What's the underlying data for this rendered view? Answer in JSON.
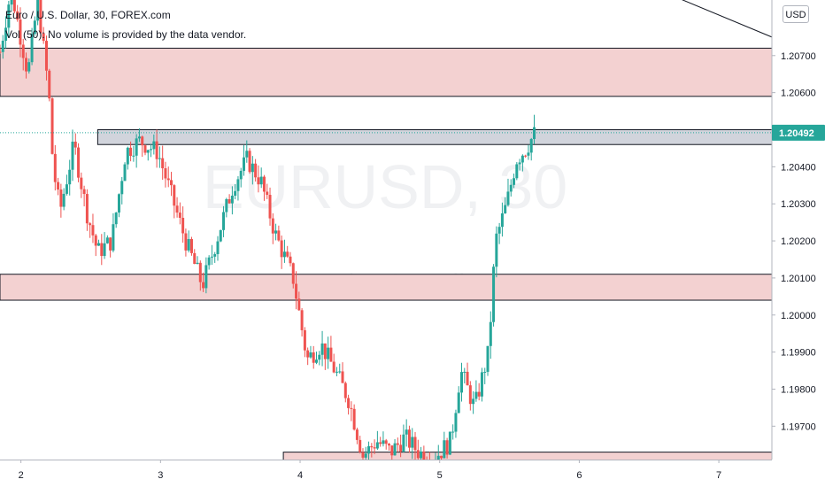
{
  "header": {
    "symbol_line": "Euro / U.S. Dollar, 30, FOREX.com",
    "volume_line": "Vol (50): No volume is provided by the data vendor."
  },
  "currency_button": "USD",
  "watermark": {
    "symbol": "EURUSD, 30",
    "name": "Euro / U.S. Dollar"
  },
  "colors": {
    "up": "#26a69a",
    "down": "#ef5350",
    "zone_red": "#f3d1d1",
    "zone_gray": "#d1d4dc",
    "price_tag": "#26a69a"
  },
  "chart_data": {
    "type": "candlestick",
    "instrument": "EURUSD",
    "timeframe": "30",
    "x_ticks": [
      "2",
      "3",
      "4",
      "5",
      "6",
      "7"
    ],
    "y_ticks": [
      "1.19700",
      "1.19800",
      "1.19900",
      "1.20000",
      "1.20100",
      "1.20200",
      "1.20300",
      "1.20400",
      "1.20600",
      "1.20700"
    ],
    "ylim": [
      1.1961,
      1.2085
    ],
    "xlim": [
      1.85,
      7.38
    ],
    "last_price": "1.20492",
    "zones": [
      {
        "color": "red",
        "x_start": 1.85,
        "x_end": 7.38,
        "y_low": 1.2059,
        "y_high": 1.2072
      },
      {
        "color": "gray",
        "x_start": 2.55,
        "x_end": 7.38,
        "y_low": 1.2046,
        "y_high": 1.205
      },
      {
        "color": "red",
        "x_start": 1.85,
        "x_end": 7.38,
        "y_low": 1.2004,
        "y_high": 1.2011
      },
      {
        "color": "red",
        "x_start": 3.88,
        "x_end": 7.38,
        "y_low": 1.196,
        "y_high": 1.1963
      }
    ],
    "trendline": [
      {
        "x": 6.55,
        "y": 1.2088
      },
      {
        "x": 7.38,
        "y": 1.2075
      }
    ],
    "price_path": [
      {
        "x": 1.85,
        "y": 1.2071
      },
      {
        "x": 1.93,
        "y": 1.2088
      },
      {
        "x": 2.05,
        "y": 1.2065
      },
      {
        "x": 2.12,
        "y": 1.2085
      },
      {
        "x": 2.2,
        "y": 1.206
      },
      {
        "x": 2.23,
        "y": 1.204
      },
      {
        "x": 2.28,
        "y": 1.2028
      },
      {
        "x": 2.38,
        "y": 1.2046
      },
      {
        "x": 2.47,
        "y": 1.2028
      },
      {
        "x": 2.55,
        "y": 1.2017
      },
      {
        "x": 2.65,
        "y": 1.202
      },
      {
        "x": 2.75,
        "y": 1.2044
      },
      {
        "x": 2.85,
        "y": 1.2047
      },
      {
        "x": 2.98,
        "y": 1.2044
      },
      {
        "x": 3.08,
        "y": 1.2032
      },
      {
        "x": 3.18,
        "y": 1.202
      },
      {
        "x": 3.3,
        "y": 1.2008
      },
      {
        "x": 3.4,
        "y": 1.202
      },
      {
        "x": 3.52,
        "y": 1.2035
      },
      {
        "x": 3.62,
        "y": 1.2042
      },
      {
        "x": 3.72,
        "y": 1.2036
      },
      {
        "x": 3.82,
        "y": 1.2022
      },
      {
        "x": 3.95,
        "y": 1.201
      },
      {
        "x": 4.05,
        "y": 1.1988
      },
      {
        "x": 4.15,
        "y": 1.1992
      },
      {
        "x": 4.25,
        "y": 1.1985
      },
      {
        "x": 4.35,
        "y": 1.1977
      },
      {
        "x": 4.45,
        "y": 1.1962
      },
      {
        "x": 4.55,
        "y": 1.1966
      },
      {
        "x": 4.65,
        "y": 1.1963
      },
      {
        "x": 4.75,
        "y": 1.1967
      },
      {
        "x": 4.85,
        "y": 1.1963
      },
      {
        "x": 4.95,
        "y": 1.1961
      },
      {
        "x": 5.08,
        "y": 1.1966
      },
      {
        "x": 5.15,
        "y": 1.1985
      },
      {
        "x": 5.25,
        "y": 1.1975
      },
      {
        "x": 5.35,
        "y": 1.199
      },
      {
        "x": 5.4,
        "y": 1.202
      },
      {
        "x": 5.48,
        "y": 1.203
      },
      {
        "x": 5.55,
        "y": 1.2042
      },
      {
        "x": 5.62,
        "y": 1.2045
      },
      {
        "x": 5.68,
        "y": 1.2049
      }
    ]
  }
}
